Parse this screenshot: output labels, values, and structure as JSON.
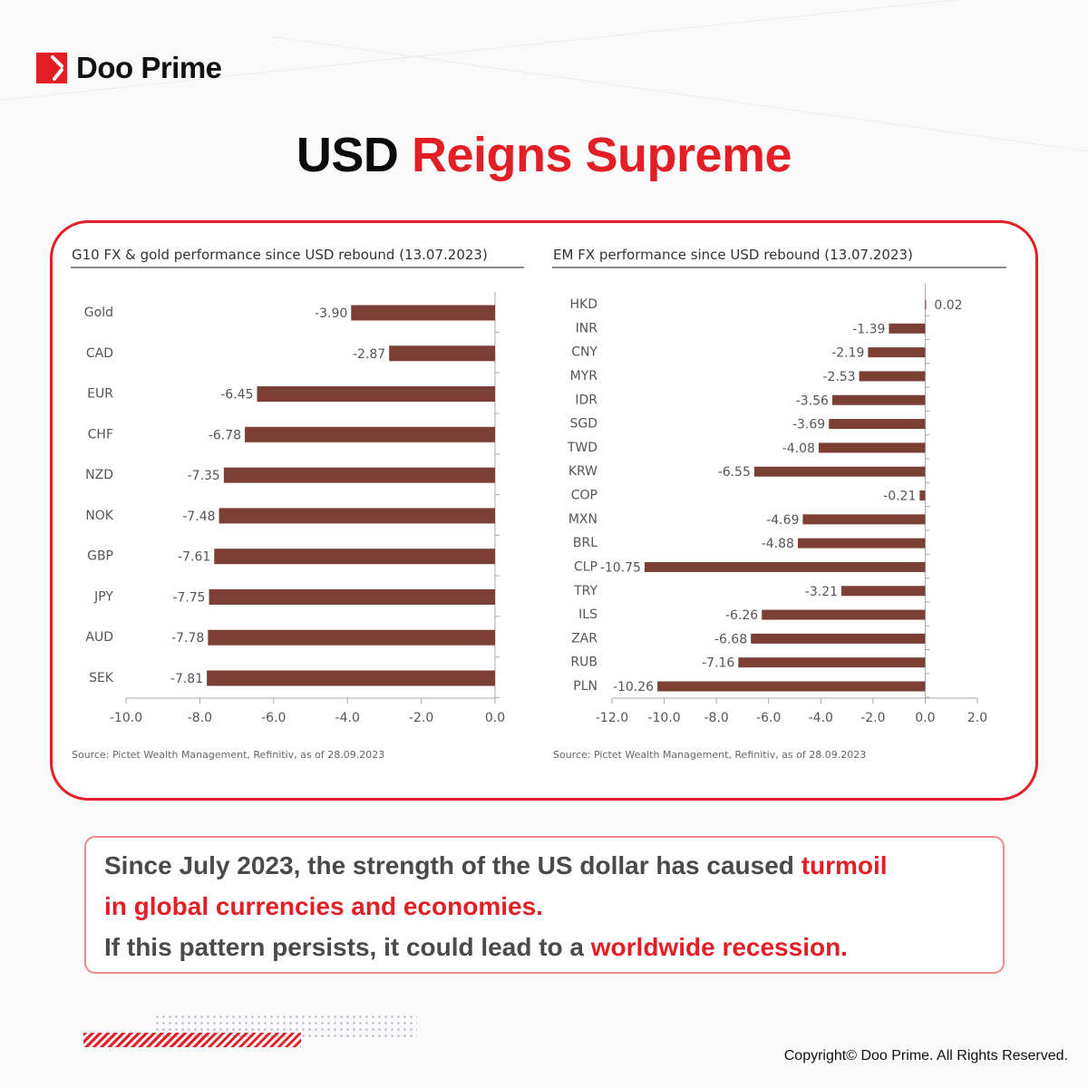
{
  "brand": {
    "name": "Doo Prime",
    "accent": "#e31e24"
  },
  "title": {
    "part1": "USD",
    "part2": "Reigns Supreme"
  },
  "chart_data": [
    {
      "type": "bar",
      "orientation": "horizontal",
      "title": "G10 FX & gold performance since USD rebound (13.07.2023)",
      "categories": [
        "Gold",
        "CAD",
        "EUR",
        "CHF",
        "NZD",
        "NOK",
        "GBP",
        "JPY",
        "AUD",
        "SEK"
      ],
      "values": [
        -3.9,
        -2.87,
        -6.45,
        -6.78,
        -7.35,
        -7.48,
        -7.61,
        -7.75,
        -7.78,
        -7.81
      ],
      "labels": [
        "-3.90",
        "-2.87",
        "-6.45",
        "-6.78",
        "-7.35",
        "-7.48",
        "-7.61",
        "-7.75",
        "-7.78",
        "-7.81"
      ],
      "xlim": [
        -10,
        0
      ],
      "ticks": [
        "-10.0",
        "-8.0",
        "-6.0",
        "-4.0",
        "-2.0",
        "0.0"
      ],
      "bar_color": "#7b3f35",
      "source": "Source: Pictet Wealth Management, Refinitiv, as of 28.09.2023"
    },
    {
      "type": "bar",
      "orientation": "horizontal",
      "title": "EM FX performance since USD rebound (13.07.2023)",
      "categories": [
        "HKD",
        "INR",
        "CNY",
        "MYR",
        "IDR",
        "SGD",
        "TWD",
        "KRW",
        "COP",
        "MXN",
        "BRL",
        "CLP",
        "TRY",
        "ILS",
        "ZAR",
        "RUB",
        "PLN"
      ],
      "values": [
        0.02,
        -1.39,
        -2.19,
        -2.53,
        -3.56,
        -3.69,
        -4.08,
        -6.55,
        -0.21,
        -4.69,
        -4.88,
        -10.75,
        -3.21,
        -6.26,
        -6.68,
        -7.16,
        -10.26
      ],
      "labels": [
        "0.02",
        "-1.39",
        "-2.19",
        "-2.53",
        "-3.56",
        "-3.69",
        "-4.08",
        "-6.55",
        "-0.21",
        "-4.69",
        "-4.88",
        "-10.75",
        "-3.21",
        "-6.26",
        "-6.68",
        "-7.16",
        "-10.26"
      ],
      "xlim": [
        -12,
        2
      ],
      "ticks": [
        "-12.0",
        "-10.0",
        "-8.0",
        "-6.0",
        "-4.0",
        "-2.0",
        "0.0",
        "2.0"
      ],
      "bar_color": "#7b3f35",
      "source": "Source: Pictet Wealth Management, Refinitiv, as of 28.09.2023"
    }
  ],
  "summary": {
    "line1_a": "Since July 2023, the strength of the US dollar has caused ",
    "line1_b": "turmoil",
    "line2": "in global currencies and economies.",
    "line3_a": "If this pattern persists, it could lead to a ",
    "line3_b": "worldwide recession."
  },
  "copyright": "Copyright© Doo Prime. All Rights Reserved."
}
